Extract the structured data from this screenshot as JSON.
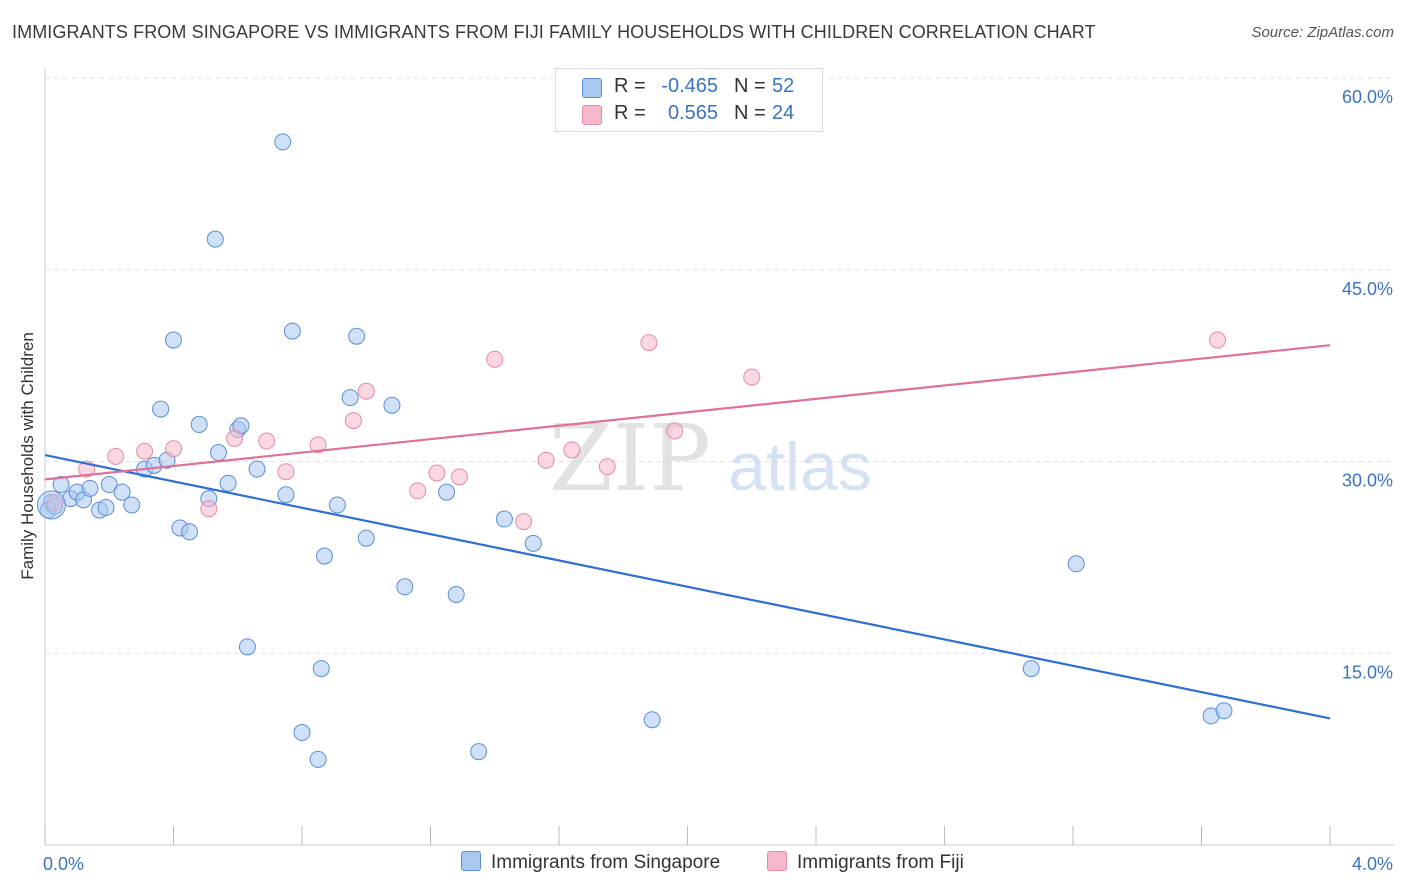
{
  "title": "IMMIGRANTS FROM SINGAPORE VS IMMIGRANTS FROM FIJI FAMILY HOUSEHOLDS WITH CHILDREN CORRELATION CHART",
  "source": "Source: ZipAtlas.com",
  "watermark": {
    "zip": "ZIP",
    "atlas": "atlas"
  },
  "stats": {
    "r_label": "R =",
    "n_label": "N =",
    "rows": [
      {
        "r": "-0.465",
        "n": "52",
        "color": "#a9c8f0"
      },
      {
        "r": "0.565",
        "n": "24",
        "color": "#f6b8cb"
      }
    ]
  },
  "legend": [
    {
      "label": "Immigrants from Singapore",
      "color": "#a9c8f0"
    },
    {
      "label": "Immigrants from Fiji",
      "color": "#f6b8cb"
    }
  ],
  "chart_data": {
    "type": "scatter",
    "xlabel": "",
    "ylabel": "Family Households with Children",
    "xlim": [
      0,
      4
    ],
    "ylim": [
      0,
      60
    ],
    "x_tick_labels": [
      "0.0%",
      "4.0%"
    ],
    "y_ticks": [
      15,
      30,
      45,
      60
    ],
    "y_tick_labels": [
      "15.0%",
      "30.0%",
      "45.0%",
      "60.0%"
    ],
    "grid": true,
    "legend_position": "bottom-center",
    "series": [
      {
        "name": "Immigrants from Singapore",
        "color": "#a9c8f0",
        "stroke": "#5b8fd6",
        "line_color": "#2e6fd1",
        "trend": [
          [
            0,
            30.5
          ],
          [
            4,
            9.9
          ]
        ],
        "points": [
          [
            0.02,
            26.8
          ],
          [
            0.05,
            28.2
          ],
          [
            0.08,
            27.1
          ],
          [
            0.1,
            27.6
          ],
          [
            0.12,
            27.0
          ],
          [
            0.14,
            27.9
          ],
          [
            0.17,
            26.2
          ],
          [
            0.19,
            26.4
          ],
          [
            0.2,
            28.2
          ],
          [
            0.24,
            27.6
          ],
          [
            0.27,
            26.6
          ],
          [
            0.31,
            29.4
          ],
          [
            0.34,
            29.7
          ],
          [
            0.36,
            34.1
          ],
          [
            0.38,
            30.1
          ],
          [
            0.4,
            39.5
          ],
          [
            0.42,
            24.8
          ],
          [
            0.45,
            24.5
          ],
          [
            0.48,
            32.9
          ],
          [
            0.51,
            27.1
          ],
          [
            0.53,
            47.4
          ],
          [
            0.54,
            30.7
          ],
          [
            0.57,
            28.3
          ],
          [
            0.6,
            32.5
          ],
          [
            0.61,
            32.8
          ],
          [
            0.63,
            15.5
          ],
          [
            0.66,
            29.4
          ],
          [
            0.74,
            55.0
          ],
          [
            0.75,
            27.4
          ],
          [
            0.77,
            40.2
          ],
          [
            0.8,
            8.8
          ],
          [
            0.85,
            6.7
          ],
          [
            0.86,
            13.8
          ],
          [
            0.87,
            22.6
          ],
          [
            0.91,
            26.6
          ],
          [
            0.95,
            35.0
          ],
          [
            0.97,
            39.8
          ],
          [
            1.0,
            24.0
          ],
          [
            1.08,
            34.4
          ],
          [
            1.12,
            20.2
          ],
          [
            1.25,
            27.6
          ],
          [
            1.28,
            19.6
          ],
          [
            1.35,
            7.3
          ],
          [
            1.43,
            25.5
          ],
          [
            1.52,
            23.6
          ],
          [
            1.89,
            9.8
          ],
          [
            3.07,
            13.8
          ],
          [
            3.21,
            22.0
          ],
          [
            3.63,
            10.1
          ],
          [
            3.67,
            10.5
          ],
          [
            0.01,
            26.2
          ],
          [
            0.03,
            26.5
          ]
        ]
      },
      {
        "name": "Immigrants from Fiji",
        "color": "#f6b8cb",
        "stroke": "#e68aa7",
        "line_color": "#e0709a",
        "trend": [
          [
            0,
            28.6
          ],
          [
            4,
            39.1
          ]
        ],
        "points": [
          [
            0.03,
            26.8
          ],
          [
            0.13,
            29.4
          ],
          [
            0.22,
            30.4
          ],
          [
            0.31,
            30.8
          ],
          [
            0.4,
            31.0
          ],
          [
            0.51,
            26.3
          ],
          [
            0.59,
            31.8
          ],
          [
            0.69,
            31.6
          ],
          [
            0.75,
            29.2
          ],
          [
            0.85,
            31.3
          ],
          [
            0.96,
            33.2
          ],
          [
            1.0,
            35.5
          ],
          [
            1.16,
            27.7
          ],
          [
            1.22,
            29.1
          ],
          [
            1.29,
            28.8
          ],
          [
            1.4,
            38.0
          ],
          [
            1.49,
            25.3
          ],
          [
            1.56,
            30.1
          ],
          [
            1.64,
            30.9
          ],
          [
            1.75,
            29.6
          ],
          [
            1.88,
            39.3
          ],
          [
            1.96,
            32.4
          ],
          [
            2.2,
            36.6
          ],
          [
            3.65,
            39.5
          ]
        ]
      }
    ]
  }
}
